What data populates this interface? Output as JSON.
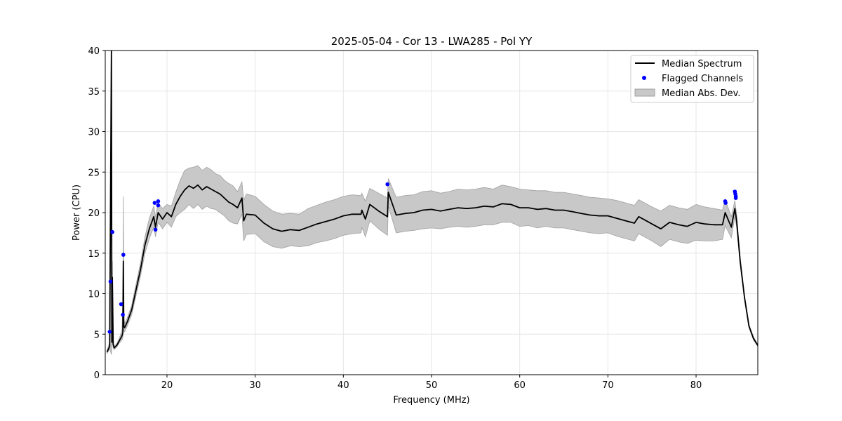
{
  "chart_data": {
    "type": "line",
    "title": "2025-05-04 - Cor 13 - LWA285 - Pol YY",
    "xlabel": "Frequency (MHz)",
    "ylabel": "Power (CPU)",
    "xlim": [
      13,
      87
    ],
    "ylim": [
      0,
      40
    ],
    "xticks": [
      20,
      30,
      40,
      50,
      60,
      70,
      80
    ],
    "yticks": [
      0,
      5,
      10,
      15,
      20,
      25,
      30,
      35,
      40
    ],
    "grid": true,
    "legend": {
      "placement": "top-right",
      "entries": [
        "Median Spectrum",
        "Flagged Channels",
        "Median Abs. Dev."
      ]
    },
    "colors": {
      "median": "#000000",
      "flagged": "#0000ff",
      "mad_fill": "#c8c8c8",
      "mad_edge": "#a0a0a0"
    },
    "series": [
      {
        "name": "Median Spectrum",
        "x": [
          13.2,
          13.5,
          13.7,
          13.75,
          13.8,
          13.9,
          14.0,
          14.3,
          14.6,
          14.9,
          15.0,
          15.05,
          15.1,
          15.2,
          15.5,
          16.0,
          16.5,
          17.0,
          17.5,
          18.0,
          18.5,
          18.7,
          19.0,
          19.5,
          20.0,
          20.5,
          21.0,
          21.5,
          22.0,
          22.5,
          23.0,
          23.5,
          24.0,
          24.5,
          25.0,
          25.5,
          26.0,
          26.5,
          27.0,
          27.5,
          28.0,
          28.5,
          28.7,
          29.0,
          30.0,
          31.0,
          32.0,
          33.0,
          34.0,
          35.0,
          36.0,
          37.0,
          38.0,
          39.0,
          40.0,
          41.0,
          42.0,
          42.1,
          42.5,
          43.0,
          44.0,
          45.0,
          45.1,
          46.0,
          47.0,
          48.0,
          49.0,
          50.0,
          51.0,
          52.0,
          53.0,
          54.0,
          55.0,
          56.0,
          57.0,
          58.0,
          59.0,
          60.0,
          61.0,
          62.0,
          63.0,
          64.0,
          65.0,
          66.0,
          67.0,
          68.0,
          69.0,
          70.0,
          71.0,
          72.0,
          73.0,
          73.5,
          74.0,
          75.0,
          76.0,
          77.0,
          78.0,
          79.0,
          80.0,
          81.0,
          82.0,
          83.0,
          83.3,
          84.0,
          84.4,
          84.6,
          85.0,
          85.5,
          86.0,
          86.5,
          87.0
        ],
        "y": [
          2.8,
          3.5,
          40,
          4.0,
          12,
          3.8,
          3.3,
          3.6,
          4.2,
          4.8,
          5.2,
          14,
          6.0,
          5.8,
          6.5,
          8.0,
          10.5,
          13.0,
          16.0,
          18.0,
          19.5,
          18.2,
          20.0,
          19.2,
          20.0,
          19.5,
          21.0,
          22.0,
          22.8,
          23.3,
          23.0,
          23.4,
          22.8,
          23.2,
          22.9,
          22.6,
          22.3,
          21.8,
          21.3,
          21.0,
          20.6,
          21.8,
          19.0,
          19.8,
          19.7,
          18.7,
          18.0,
          17.7,
          17.9,
          17.8,
          18.2,
          18.6,
          18.9,
          19.2,
          19.6,
          19.8,
          19.8,
          20.3,
          19.2,
          21.0,
          20.2,
          19.5,
          22.5,
          19.7,
          19.9,
          20.0,
          20.3,
          20.4,
          20.2,
          20.4,
          20.6,
          20.5,
          20.6,
          20.8,
          20.7,
          21.1,
          21.0,
          20.6,
          20.6,
          20.4,
          20.5,
          20.3,
          20.3,
          20.1,
          19.9,
          19.7,
          19.6,
          19.6,
          19.3,
          19.0,
          18.7,
          19.5,
          19.2,
          18.6,
          18.0,
          18.8,
          18.5,
          18.3,
          18.8,
          18.6,
          18.5,
          18.5,
          20.0,
          18.2,
          20.5,
          19.0,
          14.0,
          9.5,
          6.0,
          4.5,
          3.6
        ]
      },
      {
        "name": "Median Abs. Dev.",
        "x": [
          13.2,
          13.5,
          13.7,
          13.75,
          13.8,
          13.9,
          14.0,
          14.3,
          14.6,
          14.9,
          15.0,
          15.05,
          15.1,
          15.2,
          15.5,
          16.0,
          16.5,
          17.0,
          17.5,
          18.0,
          18.5,
          18.7,
          19.0,
          19.5,
          20.0,
          20.5,
          21.0,
          21.5,
          22.0,
          22.5,
          23.0,
          23.5,
          24.0,
          24.5,
          25.0,
          25.5,
          26.0,
          26.5,
          27.0,
          27.5,
          28.0,
          28.5,
          28.7,
          29.0,
          30.0,
          31.0,
          32.0,
          33.0,
          34.0,
          35.0,
          36.0,
          37.0,
          38.0,
          39.0,
          40.0,
          41.0,
          42.0,
          42.1,
          42.5,
          43.0,
          44.0,
          45.0,
          45.1,
          46.0,
          47.0,
          48.0,
          49.0,
          50.0,
          51.0,
          52.0,
          53.0,
          54.0,
          55.0,
          56.0,
          57.0,
          58.0,
          59.0,
          60.0,
          61.0,
          62.0,
          63.0,
          64.0,
          65.0,
          66.0,
          67.0,
          68.0,
          69.0,
          70.0,
          71.0,
          72.0,
          73.0,
          73.5,
          74.0,
          75.0,
          76.0,
          77.0,
          78.0,
          79.0,
          80.0,
          81.0,
          82.0,
          83.0,
          83.3,
          84.0,
          84.4,
          84.6,
          85.0,
          85.5,
          86.0,
          86.5,
          87.0
        ],
        "upper": [
          3.0,
          4.0,
          28.0,
          5.0,
          14.0,
          4.2,
          3.5,
          3.8,
          4.5,
          5.5,
          10.0,
          22.0,
          7.0,
          6.3,
          7.0,
          8.6,
          11.2,
          13.8,
          17.0,
          19.3,
          20.8,
          19.5,
          21.2,
          20.5,
          21.0,
          20.8,
          22.5,
          24.0,
          25.2,
          25.5,
          25.6,
          25.8,
          25.2,
          25.6,
          25.3,
          24.8,
          24.6,
          24.0,
          23.6,
          23.3,
          22.6,
          23.8,
          21.5,
          22.3,
          22.0,
          21.0,
          20.2,
          19.8,
          19.9,
          19.8,
          20.5,
          20.9,
          21.3,
          21.6,
          22.0,
          22.2,
          22.1,
          22.4,
          21.4,
          23.0,
          22.4,
          21.8,
          24.2,
          21.9,
          22.1,
          22.2,
          22.6,
          22.7,
          22.4,
          22.6,
          22.9,
          22.8,
          22.9,
          23.1,
          22.9,
          23.4,
          23.2,
          22.9,
          22.8,
          22.7,
          22.7,
          22.5,
          22.5,
          22.3,
          22.1,
          21.9,
          21.8,
          21.7,
          21.5,
          21.2,
          20.9,
          21.6,
          21.3,
          20.7,
          20.2,
          20.9,
          20.6,
          20.4,
          21.0,
          20.7,
          20.5,
          20.3,
          21.6,
          19.5,
          21.5,
          19.8,
          14.5,
          9.8,
          6.2,
          4.7,
          3.7
        ],
        "lower": [
          2.6,
          3.2,
          2.5,
          3.2,
          4.0,
          3.4,
          3.1,
          3.4,
          3.9,
          4.3,
          4.6,
          6.0,
          5.4,
          5.3,
          6.0,
          7.4,
          9.8,
          12.2,
          15.0,
          16.8,
          18.2,
          17.0,
          18.8,
          18.0,
          18.8,
          18.2,
          19.5,
          20.0,
          20.4,
          21.0,
          20.5,
          21.0,
          20.4,
          20.8,
          20.5,
          20.4,
          20.0,
          19.6,
          19.0,
          18.7,
          18.6,
          19.8,
          16.5,
          17.3,
          17.4,
          16.4,
          15.8,
          15.6,
          15.9,
          15.8,
          15.9,
          16.3,
          16.5,
          16.8,
          17.2,
          17.4,
          17.5,
          18.2,
          17.0,
          19.0,
          18.0,
          17.2,
          20.8,
          17.5,
          17.7,
          17.8,
          18.0,
          18.1,
          18.0,
          18.2,
          18.3,
          18.2,
          18.3,
          18.5,
          18.5,
          18.8,
          18.8,
          18.3,
          18.4,
          18.1,
          18.3,
          18.1,
          18.1,
          17.9,
          17.7,
          17.5,
          17.4,
          17.5,
          17.1,
          16.8,
          16.5,
          17.4,
          17.1,
          16.5,
          15.8,
          16.7,
          16.4,
          16.2,
          16.6,
          16.5,
          16.5,
          16.7,
          18.4,
          16.9,
          19.5,
          18.2,
          13.5,
          9.2,
          5.8,
          4.3,
          3.5
        ]
      },
      {
        "name": "Flagged Channels",
        "x": [
          13.5,
          13.6,
          13.8,
          14.8,
          15.05,
          15.0,
          18.6,
          18.7,
          19.0,
          19.0,
          45.0,
          83.3,
          83.35,
          84.4,
          84.45,
          84.5,
          84.5
        ],
        "y": [
          5.3,
          11.5,
          17.6,
          8.7,
          14.8,
          7.4,
          21.2,
          17.9,
          21.4,
          20.9,
          23.5,
          21.4,
          21.2,
          22.6,
          22.3,
          22.0,
          21.8
        ]
      }
    ]
  }
}
